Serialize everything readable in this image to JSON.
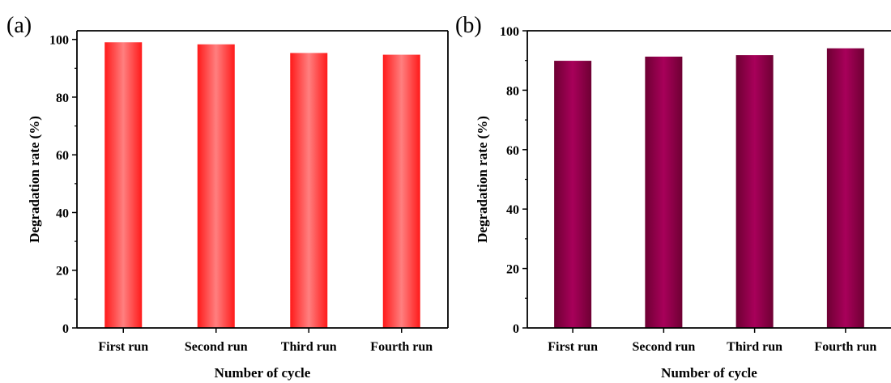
{
  "chart_data": [
    {
      "type": "bar",
      "panel_label": "(a)",
      "categories": [
        "First run",
        "Second run",
        "Third run",
        "Fourth run"
      ],
      "values": [
        99.0,
        98.3,
        95.3,
        94.7
      ],
      "xlabel": "Number of cycle",
      "ylabel": "Degradation rate (%)",
      "ylim": [
        0,
        103
      ],
      "yticks": [
        "0",
        "20",
        "40",
        "60",
        "80",
        "100"
      ],
      "grid": false,
      "bar_color_edge": "#ff1a1a",
      "bar_color_center": "#ff7f7f"
    },
    {
      "type": "bar",
      "panel_label": "(b)",
      "categories": [
        "First run",
        "Second run",
        "Third run",
        "Fourth run"
      ],
      "values": [
        89.9,
        91.3,
        91.8,
        94.1
      ],
      "xlabel": "Number of cycle",
      "ylabel": "Degradation rate (%)",
      "ylim": [
        0,
        100
      ],
      "yticks": [
        "0",
        "20",
        "40",
        "60",
        "80",
        "100"
      ],
      "grid": false,
      "bar_color_edge": "#6e0033",
      "bar_color_center": "#a8005a"
    }
  ]
}
